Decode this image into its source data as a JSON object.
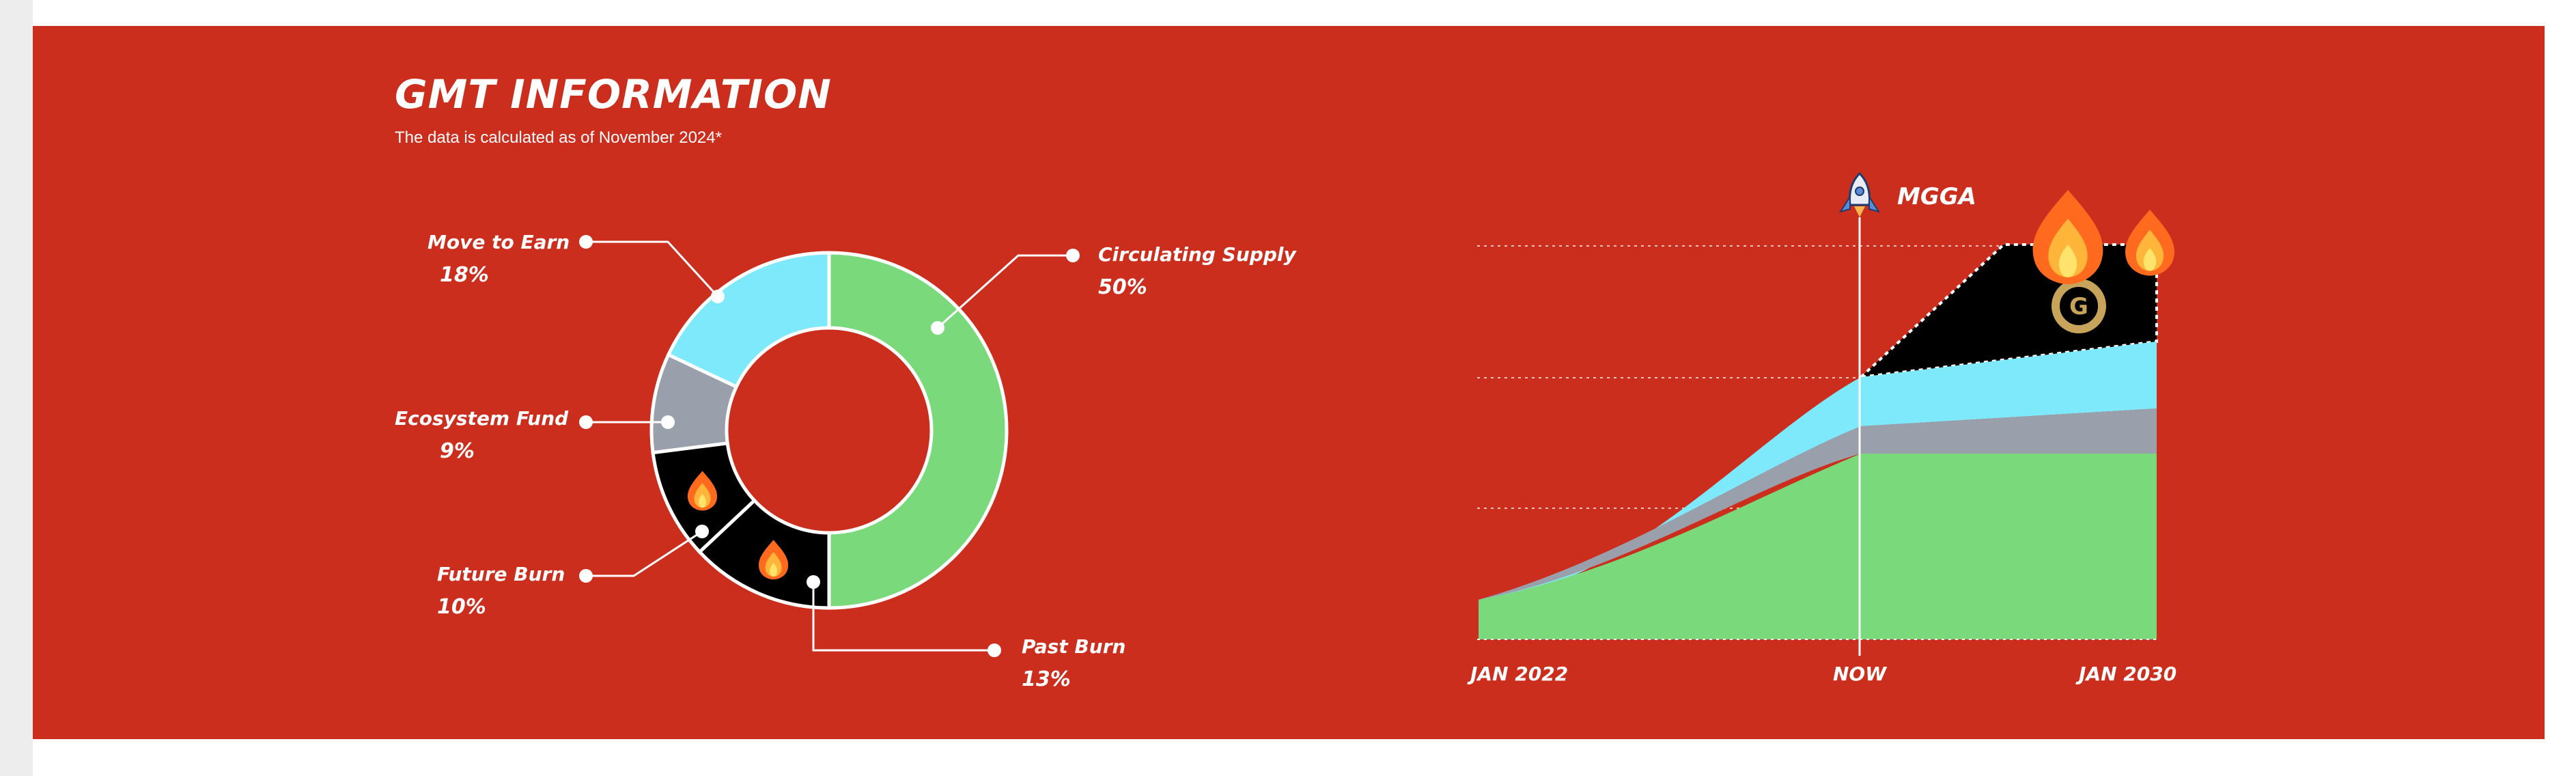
{
  "page": {
    "title": "GMT INFORMATION",
    "subtitle": "The data is calculated as of November 2024*",
    "background": "#cc2e1e"
  },
  "chart_data": [
    {
      "type": "pie",
      "variant": "donut",
      "title": "",
      "slices": [
        {
          "label": "Circulating Supply",
          "value": 50,
          "display": "50%",
          "color": "#7ad97a",
          "icon": ""
        },
        {
          "label": "Past Burn",
          "value": 13,
          "display": "13%",
          "color": "#000000",
          "icon": "fire-icon"
        },
        {
          "label": "Future Burn",
          "value": 10,
          "display": "10%",
          "color": "#000000",
          "icon": "fire-icon"
        },
        {
          "label": "Ecosystem Fund",
          "value": 9,
          "display": "9%",
          "color": "#9aa0ab",
          "icon": ""
        },
        {
          "label": "Move to Earn",
          "value": 18,
          "display": "18%",
          "color": "#7de9fb",
          "icon": ""
        }
      ]
    },
    {
      "type": "area",
      "stacked": true,
      "x_ticks": [
        "JAN 2022",
        "NOW",
        "JAN 2030"
      ],
      "marker": {
        "label": "MGGA",
        "icon": "rocket-icon",
        "at": "NOW"
      },
      "series": [
        {
          "name": "",
          "color": "#7ad97a"
        },
        {
          "name": "",
          "color": "#9aa0ab"
        },
        {
          "name": "",
          "color": "#7de9fb"
        },
        {
          "name": "",
          "color": "#000000",
          "icons": [
            "fire-icon",
            "gmt-coin-icon"
          ]
        }
      ],
      "grid": "dotted horizontal"
    }
  ]
}
